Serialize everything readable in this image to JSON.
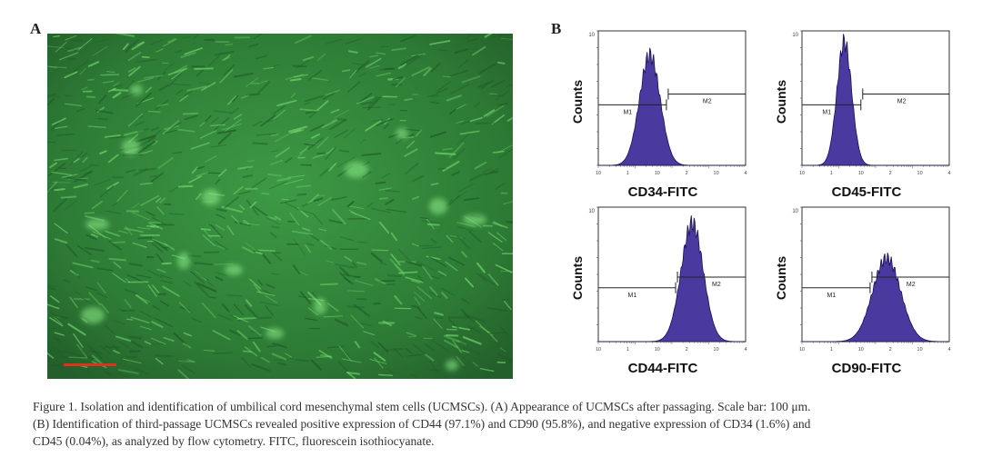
{
  "panels": {
    "a": {
      "letter": "A"
    },
    "b": {
      "letter": "B"
    }
  },
  "colors": {
    "micrograph_base": "#2e7d36",
    "cell_glow": "#7fe37a",
    "scale_bar": "#e03020",
    "histogram_fill": "#4a3aa0",
    "histogram_edge": "#1a1050"
  },
  "histograms": [
    {
      "id": "cd34",
      "ylabel": "Counts",
      "xlabel": "CD34-FITC",
      "y_max_label": "10",
      "ticks_x": [
        "10",
        "1",
        "10",
        "2",
        "10",
        "4"
      ],
      "gate_labels": [
        "M1",
        "M2"
      ],
      "peak_log": 1.4,
      "peak_height": 0.82,
      "width": 0.28
    },
    {
      "id": "cd45",
      "ylabel": "Counts",
      "xlabel": "CD45-FITC",
      "y_max_label": "10",
      "ticks_x": [
        "10",
        "1",
        "10",
        "2",
        "10",
        "4"
      ],
      "gate_labels": [
        "M1",
        "M2"
      ],
      "peak_log": 1.15,
      "peak_height": 0.92,
      "width": 0.2
    },
    {
      "id": "cd44",
      "ylabel": "Counts",
      "xlabel": "CD44-FITC",
      "y_max_label": "10",
      "ticks_x": [
        "10",
        "1",
        "10",
        "2",
        "10",
        "4"
      ],
      "gate_labels": [
        "M1",
        "M2"
      ],
      "peak_log": 2.55,
      "peak_height": 0.88,
      "width": 0.3
    },
    {
      "id": "cd90",
      "ylabel": "Counts",
      "xlabel": "CD90-FITC",
      "y_max_label": "10",
      "ticks_x": [
        "10",
        "1",
        "10",
        "2",
        "10",
        "4"
      ],
      "gate_labels": [
        "M1",
        "M2"
      ],
      "peak_log": 2.3,
      "peak_height": 0.62,
      "width": 0.38
    }
  ],
  "caption": {
    "line1": "Figure 1. Isolation and identification of umbilical cord mesenchymal stem cells (UCMSCs). (A) Appearance of UCMSCs after passaging. Scale bar: 100 μm.",
    "line2": "(B) Identification of third-passage UCMSCs revealed positive expression of CD44 (97.1%) and CD90 (95.8%), and negative expression of CD34 (1.6%) and",
    "line3": "CD45 (0.04%), as analyzed by flow cytometry. FITC, fluorescein isothiocyanate."
  }
}
